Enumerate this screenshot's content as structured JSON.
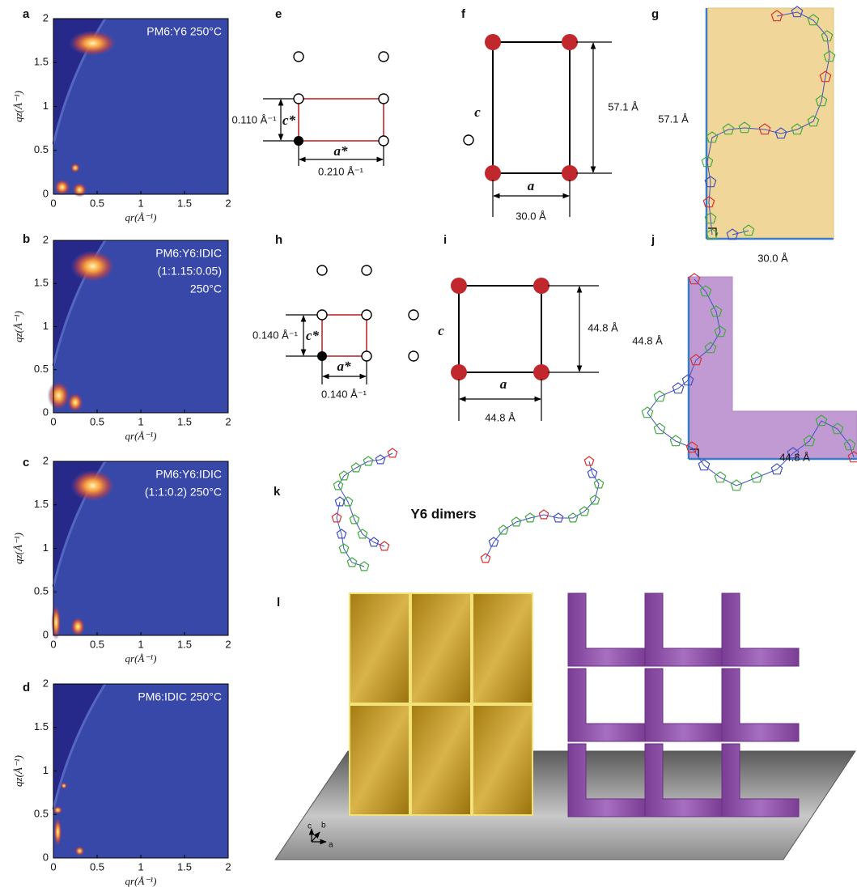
{
  "chart_data": [
    {
      "type": "heatmap",
      "title": [
        "PM6:Y6 250°C"
      ],
      "xlabel": "qr(Å⁻¹)",
      "ylabel": "qz(Å⁻¹)",
      "xlim": [
        0,
        2
      ],
      "ylim": [
        0,
        2
      ],
      "xticks": [
        0,
        0.5,
        1,
        1.5,
        2
      ],
      "yticks": [
        0,
        0.5,
        1,
        1.5,
        2
      ]
    },
    {
      "type": "heatmap",
      "title": [
        "PM6:Y6:IDIC",
        "(1:1.15:0.05)",
        "250°C"
      ],
      "xlabel": "qr(Å⁻¹)",
      "ylabel": "qz(Å⁻¹)",
      "xlim": [
        0,
        2
      ],
      "ylim": [
        0,
        2
      ],
      "xticks": [
        0,
        0.5,
        1,
        1.5,
        2
      ],
      "yticks": [
        0,
        0.5,
        1,
        1.5,
        2
      ]
    },
    {
      "type": "heatmap",
      "title": [
        "PM6:Y6:IDIC",
        "(1:1:0.2) 250°C"
      ],
      "xlabel": "qr(Å⁻¹)",
      "ylabel": "qz(Å⁻¹)",
      "xlim": [
        0,
        2
      ],
      "ylim": [
        0,
        2
      ],
      "xticks": [
        0,
        0.5,
        1,
        1.5,
        2
      ],
      "yticks": [
        0,
        0.5,
        1,
        1.5,
        2
      ]
    },
    {
      "type": "heatmap",
      "title": [
        "PM6:IDIC 250°C"
      ],
      "xlabel": "qr(Å⁻¹)",
      "ylabel": "qz(Å⁻¹)",
      "xlim": [
        0,
        2
      ],
      "ylim": [
        0,
        2
      ],
      "xticks": [
        0,
        0.5,
        1,
        1.5,
        2
      ],
      "yticks": [
        0,
        0.5,
        1,
        1.5,
        2
      ]
    }
  ],
  "panels": {
    "a": "a",
    "b": "b",
    "c": "c",
    "d": "d",
    "e": "e",
    "f": "f",
    "g": "g",
    "h": "h",
    "i": "i",
    "j": "j",
    "k": "k",
    "l": "l"
  },
  "e": {
    "c_spacing": "0.110 Å⁻¹",
    "c_label": "c*",
    "a_label": "a*",
    "a_spacing": "0.210 Å⁻¹"
  },
  "f": {
    "c_label": "c",
    "a_label": "a",
    "c_length": "57.1 Å",
    "a_length": "30.0 Å"
  },
  "g": {
    "c_length": "57.1 Å",
    "a_length": "30.0 Å"
  },
  "h": {
    "c_spacing": "0.140 Å⁻¹",
    "c_label": "c*",
    "a_label": "a*",
    "a_spacing": "0.140 Å⁻¹"
  },
  "i": {
    "c_label": "c",
    "a_label": "a",
    "c_length": "44.8 Å",
    "a_length": "44.8 Å"
  },
  "j": {
    "c_length": "44.8 Å",
    "a_length": "44.8 Å"
  },
  "k": {
    "label": "Y6 dimers"
  },
  "l": {
    "axes": [
      "c",
      "b",
      "a"
    ]
  }
}
